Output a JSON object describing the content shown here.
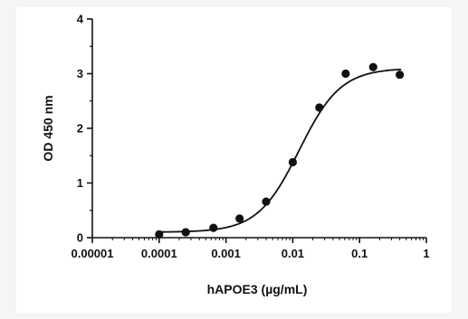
{
  "chart_data": {
    "type": "scatter",
    "xlabel": "hAPOE3 (µg/mL)",
    "ylabel": "OD 450 nm",
    "x_scale": "log",
    "xlim": [
      1e-05,
      1
    ],
    "ylim": [
      0,
      4
    ],
    "x_ticks": [
      "0.00001",
      "0.0001",
      "0.001",
      "0.01",
      "0.1",
      "1"
    ],
    "y_ticks": [
      "0",
      "1",
      "2",
      "3",
      "4"
    ],
    "grid": false,
    "series": [
      {
        "points": [
          {
            "x": 0.0001,
            "y": 0.06
          },
          {
            "x": 0.00025,
            "y": 0.1
          },
          {
            "x": 0.00065,
            "y": 0.18
          },
          {
            "x": 0.0016,
            "y": 0.35
          },
          {
            "x": 0.004,
            "y": 0.66
          },
          {
            "x": 0.01,
            "y": 1.38
          },
          {
            "x": 0.025,
            "y": 2.38
          },
          {
            "x": 0.062,
            "y": 3.0
          },
          {
            "x": 0.16,
            "y": 3.12
          },
          {
            "x": 0.4,
            "y": 2.98
          }
        ]
      }
    ],
    "fit_curve": {
      "type": "4PL",
      "bottom": 0.1,
      "top": 3.1,
      "ec50": 0.0125,
      "hill": 1.4,
      "x_range": [
        0.0001,
        0.42
      ]
    }
  }
}
